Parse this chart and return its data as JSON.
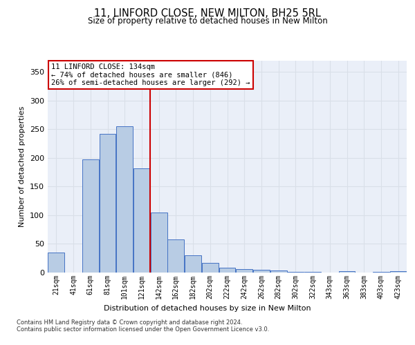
{
  "title": "11, LINFORD CLOSE, NEW MILTON, BH25 5RL",
  "subtitle": "Size of property relative to detached houses in New Milton",
  "xlabel": "Distribution of detached houses by size in New Milton",
  "ylabel": "Number of detached properties",
  "bar_labels": [
    "21sqm",
    "41sqm",
    "61sqm",
    "81sqm",
    "101sqm",
    "121sqm",
    "142sqm",
    "162sqm",
    "182sqm",
    "202sqm",
    "222sqm",
    "242sqm",
    "262sqm",
    "282sqm",
    "302sqm",
    "322sqm",
    "343sqm",
    "363sqm",
    "383sqm",
    "403sqm",
    "423sqm"
  ],
  "bar_values": [
    35,
    0,
    197,
    242,
    255,
    182,
    105,
    58,
    30,
    17,
    9,
    6,
    5,
    4,
    1,
    1,
    0,
    2,
    0,
    1,
    2
  ],
  "bar_color": "#b8cce4",
  "bar_edge_color": "#4472c4",
  "grid_color": "#d9dfe8",
  "background_color": "#eaeff8",
  "vline_color": "#cc0000",
  "annotation_text": "11 LINFORD CLOSE: 134sqm\n← 74% of detached houses are smaller (846)\n26% of semi-detached houses are larger (292) →",
  "annotation_box_color": "#ffffff",
  "annotation_box_edge": "#cc0000",
  "footer_text": "Contains HM Land Registry data © Crown copyright and database right 2024.\nContains public sector information licensed under the Open Government Licence v3.0.",
  "ylim": [
    0,
    370
  ],
  "yticks": [
    0,
    50,
    100,
    150,
    200,
    250,
    300,
    350
  ]
}
